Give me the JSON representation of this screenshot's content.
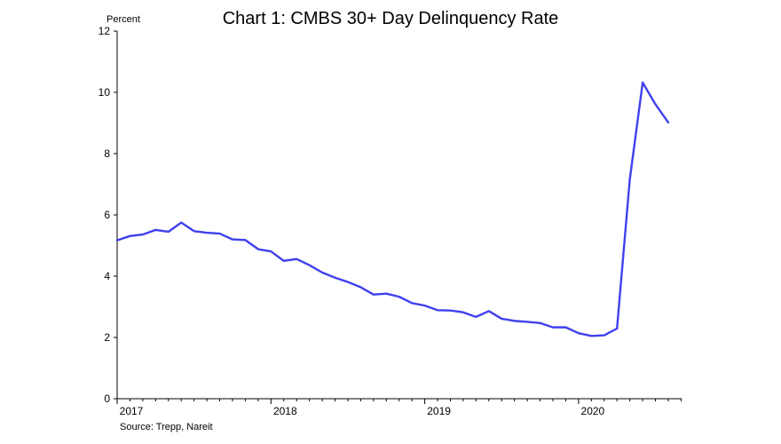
{
  "chart_data": {
    "type": "line",
    "title": "Chart 1: CMBS 30+ Day Delinquency Rate",
    "ylabel": "Percent",
    "source": "Source: Trepp, Nareit",
    "ylim": [
      0,
      12
    ],
    "yticks": [
      0,
      2,
      4,
      6,
      8,
      10,
      12
    ],
    "xlim": [
      2017.0,
      2020.67
    ],
    "xticks": [
      {
        "value": 2017,
        "label": "2017"
      },
      {
        "value": 2018,
        "label": "2018"
      },
      {
        "value": 2019,
        "label": "2019"
      },
      {
        "value": 2020,
        "label": "2020"
      }
    ],
    "grid": false,
    "legend": "none",
    "series": [
      {
        "color": "#4040ee",
        "x": [
          2017.0,
          2017.083,
          2017.167,
          2017.25,
          2017.333,
          2017.417,
          2017.5,
          2017.583,
          2017.667,
          2017.75,
          2017.833,
          2017.917,
          2018.0,
          2018.083,
          2018.167,
          2018.25,
          2018.333,
          2018.417,
          2018.5,
          2018.583,
          2018.667,
          2018.75,
          2018.833,
          2018.917,
          2019.0,
          2019.083,
          2019.167,
          2019.25,
          2019.333,
          2019.417,
          2019.5,
          2019.583,
          2019.667,
          2019.75,
          2019.833,
          2019.917,
          2020.0,
          2020.083,
          2020.167,
          2020.25,
          2020.333,
          2020.417,
          2020.5,
          2020.583
        ],
        "values": [
          5.17,
          5.31,
          5.36,
          5.51,
          5.45,
          5.75,
          5.47,
          5.42,
          5.39,
          5.2,
          5.18,
          4.88,
          4.81,
          4.5,
          4.56,
          4.36,
          4.12,
          3.95,
          3.81,
          3.64,
          3.4,
          3.43,
          3.33,
          3.12,
          3.04,
          2.89,
          2.88,
          2.82,
          2.67,
          2.86,
          2.61,
          2.54,
          2.51,
          2.47,
          2.33,
          2.33,
          2.14,
          2.05,
          2.07,
          2.29,
          7.15,
          10.32,
          9.61,
          9.02
        ]
      }
    ]
  }
}
